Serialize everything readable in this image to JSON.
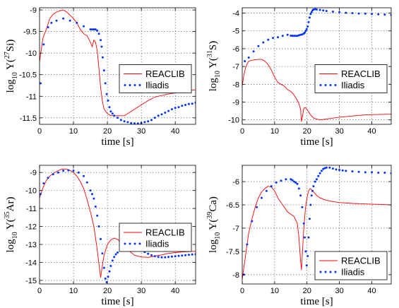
{
  "chart_data": [
    {
      "type": "line",
      "ylabel_base": "log",
      "ylabel_sub": "10",
      "ylabel_mid": " Y(",
      "ylabel_sup": "27",
      "ylabel_iso": "Si)",
      "xlabel": "time [s]",
      "xlim": [
        0,
        46
      ],
      "ylim": [
        -11.65,
        -8.95
      ],
      "xticks": [
        0,
        10,
        20,
        30,
        40
      ],
      "xtick_labels": [
        "0",
        "10",
        "20",
        "30",
        "40"
      ],
      "yticks": [
        -11.5,
        -11,
        -10.5,
        -10,
        -9.5,
        -9
      ],
      "ytick_labels": [
        "-11.5",
        "-11",
        "-10.5",
        "-10",
        "-9.5",
        "-9"
      ],
      "grid": true,
      "legend_position": "center-right",
      "series": [
        {
          "name": "REACLIB",
          "style": "line",
          "color": "#ff0000",
          "x": [
            0,
            1,
            2,
            3,
            4,
            5,
            6,
            7,
            8,
            9,
            10,
            11,
            12,
            13,
            14,
            15,
            15.5,
            16,
            16.5,
            17,
            17.5,
            18,
            18.5,
            19,
            20,
            21,
            22,
            23,
            24,
            25,
            26,
            28,
            30,
            32,
            34,
            36,
            38,
            40,
            42,
            44,
            46
          ],
          "y": [
            -10.2,
            -9.65,
            -9.45,
            -9.2,
            -9.1,
            -9.05,
            -9.02,
            -9.0,
            -9.05,
            -9.12,
            -9.2,
            -9.3,
            -9.45,
            -9.55,
            -9.6,
            -9.75,
            -9.85,
            -9.7,
            -9.75,
            -9.95,
            -10.35,
            -10.8,
            -11.1,
            -11.3,
            -11.4,
            -11.45,
            -11.45,
            -11.45,
            -11.45,
            -11.45,
            -11.4,
            -11.3,
            -11.2,
            -11.1,
            -11.02,
            -10.98,
            -10.95,
            -10.92,
            -10.9,
            -10.87,
            -10.85
          ]
        },
        {
          "name": "Iliadis",
          "style": "dots",
          "color": "#0033ff",
          "x": [
            0.3,
            1.2,
            2.5,
            3.5,
            5,
            7,
            9,
            11,
            13,
            15,
            15.5,
            16,
            16.5,
            17,
            17.5,
            18,
            18.3,
            18.6,
            19,
            19.4,
            19.8,
            20.2,
            20.6,
            21,
            21.5,
            22,
            23,
            24,
            25,
            26,
            27,
            28,
            29,
            30,
            31,
            32,
            33,
            34,
            35,
            36,
            37,
            38,
            39,
            40,
            41,
            42,
            43,
            44,
            45,
            46
          ],
          "y": [
            -10.7,
            -9.8,
            -9.4,
            -9.3,
            -9.25,
            -9.2,
            -9.25,
            -9.3,
            -9.38,
            -9.45,
            -9.45,
            -9.45,
            -9.45,
            -9.48,
            -9.55,
            -9.7,
            -9.85,
            -10.1,
            -10.4,
            -10.7,
            -10.95,
            -11.1,
            -11.25,
            -11.35,
            -11.4,
            -11.45,
            -11.5,
            -11.55,
            -11.58,
            -11.6,
            -11.62,
            -11.63,
            -11.63,
            -11.62,
            -11.6,
            -11.58,
            -11.55,
            -11.5,
            -11.45,
            -11.42,
            -11.38,
            -11.34,
            -11.3,
            -11.27,
            -11.25,
            -11.22,
            -11.2,
            -11.18,
            -11.17,
            -11.15
          ]
        }
      ]
    },
    {
      "type": "line",
      "ylabel_base": "log",
      "ylabel_sub": "10",
      "ylabel_mid": " Y(",
      "ylabel_sup": "31",
      "ylabel_iso": "S)",
      "xlabel": "time [s]",
      "xlim": [
        0,
        46
      ],
      "ylim": [
        -10.25,
        -3.7
      ],
      "xticks": [
        0,
        10,
        20,
        30,
        40
      ],
      "xtick_labels": [
        "0",
        "10",
        "20",
        "30",
        "40"
      ],
      "yticks": [
        -10,
        -9,
        -8,
        -7,
        -6,
        -5,
        -4
      ],
      "ytick_labels": [
        "-10",
        "-9",
        "-8",
        "-7",
        "-6",
        "-5",
        "-4"
      ],
      "grid": true,
      "legend_position": "center-right",
      "series": [
        {
          "name": "REACLIB",
          "style": "line",
          "color": "#ff0000",
          "x": [
            0,
            0.5,
            1,
            1.5,
            2,
            3,
            4,
            5,
            6,
            7,
            8,
            9,
            10,
            11,
            12,
            13,
            14,
            15,
            16,
            17,
            17.5,
            18,
            18.3,
            18.6,
            19,
            19.5,
            20,
            21,
            22,
            24,
            26,
            28,
            30,
            34,
            38,
            42,
            46
          ],
          "y": [
            -8.1,
            -7.5,
            -7.1,
            -6.85,
            -6.7,
            -6.65,
            -6.62,
            -6.6,
            -6.6,
            -6.7,
            -6.9,
            -7.2,
            -7.6,
            -7.9,
            -8.0,
            -8.1,
            -8.3,
            -8.4,
            -8.6,
            -8.9,
            -9.1,
            -9.4,
            -10.1,
            -9.8,
            -9.35,
            -9.3,
            -9.4,
            -9.7,
            -9.9,
            -10.0,
            -9.95,
            -9.9,
            -9.85,
            -9.78,
            -9.72,
            -9.7,
            -9.68
          ]
        },
        {
          "name": "Iliadis",
          "style": "dots",
          "color": "#0033ff",
          "x": [
            0.8,
            2,
            3.5,
            5,
            6.5,
            8,
            9.5,
            11,
            12.5,
            14,
            15,
            15.5,
            16,
            16.5,
            17,
            17.5,
            18,
            18.5,
            19,
            19.3,
            19.6,
            19.9,
            20.2,
            20.5,
            20.8,
            21.1,
            21.4,
            21.7,
            22,
            22.5,
            23,
            24,
            25,
            26,
            28,
            30,
            32,
            34,
            36,
            38,
            40,
            42,
            44,
            46
          ],
          "y": [
            -6.7,
            -6.5,
            -6.15,
            -5.85,
            -5.65,
            -5.5,
            -5.4,
            -5.35,
            -5.28,
            -5.22,
            -5.27,
            -5.28,
            -5.28,
            -5.28,
            -5.28,
            -5.25,
            -5.22,
            -5.2,
            -5.15,
            -5.1,
            -5.0,
            -4.9,
            -4.75,
            -4.5,
            -4.25,
            -4.05,
            -3.95,
            -3.85,
            -3.8,
            -3.78,
            -3.8,
            -3.82,
            -3.85,
            -3.88,
            -3.92,
            -3.95,
            -3.98,
            -4.0,
            -4.02,
            -4.03,
            -4.05,
            -4.07,
            -4.08,
            -4.1
          ]
        }
      ]
    },
    {
      "type": "line",
      "ylabel_base": "log",
      "ylabel_sub": "10",
      "ylabel_mid": " Y(",
      "ylabel_sup": "35",
      "ylabel_iso": "Ar)",
      "xlabel": "time [s]",
      "xlim": [
        0,
        46
      ],
      "ylim": [
        -15.2,
        -8.6
      ],
      "xticks": [
        0,
        10,
        20,
        30,
        40
      ],
      "xtick_labels": [
        "0",
        "10",
        "20",
        "30",
        "40"
      ],
      "yticks": [
        -15,
        -14,
        -13,
        -12,
        -11,
        -10,
        -9
      ],
      "ytick_labels": [
        "-15",
        "-14",
        "-13",
        "-12",
        "-11",
        "-10",
        "-9"
      ],
      "grid": true,
      "legend_position": "center-right",
      "series": [
        {
          "name": "REACLIB",
          "style": "line",
          "color": "#ff0000",
          "x": [
            0,
            1,
            2,
            3,
            4,
            5,
            6,
            7,
            8,
            9,
            10,
            11,
            12,
            13,
            14,
            15,
            16,
            17,
            17.5,
            18,
            18.5,
            19,
            20,
            21,
            22,
            23,
            24,
            25,
            26,
            28,
            30,
            32,
            34,
            36,
            38,
            40,
            42,
            44,
            46
          ],
          "y": [
            -10.4,
            -9.85,
            -9.45,
            -9.2,
            -9.05,
            -8.95,
            -8.85,
            -8.8,
            -8.82,
            -8.88,
            -9.0,
            -9.2,
            -9.5,
            -9.9,
            -10.5,
            -11.2,
            -12.0,
            -13.3,
            -14.1,
            -14.85,
            -14.2,
            -13.6,
            -13.0,
            -12.75,
            -12.65,
            -12.72,
            -12.9,
            -13.1,
            -13.3,
            -13.6,
            -13.7,
            -13.72,
            -13.65,
            -13.58,
            -13.5,
            -13.45,
            -13.42,
            -13.4,
            -13.38
          ]
        },
        {
          "name": "Iliadis",
          "style": "dots",
          "color": "#0033ff",
          "x": [
            0.3,
            1.2,
            2.5,
            4,
            5.5,
            7,
            8.5,
            10,
            11.5,
            13,
            14,
            15,
            15.5,
            16,
            16.5,
            17,
            17.5,
            18,
            18.5,
            19,
            19.4,
            19.8,
            20.2,
            20.6,
            21,
            21.5,
            22,
            22.5,
            23,
            24,
            25,
            26,
            27,
            28,
            29,
            30,
            31,
            32,
            33,
            34,
            35,
            36,
            37,
            38,
            39,
            40,
            41,
            42,
            43,
            44,
            45,
            46
          ],
          "y": [
            -10.2,
            -9.6,
            -9.3,
            -9.1,
            -9.0,
            -8.9,
            -8.88,
            -8.9,
            -9.0,
            -9.2,
            -9.55,
            -10.0,
            -10.2,
            -10.45,
            -10.9,
            -11.4,
            -12.0,
            -12.7,
            -13.5,
            -14.3,
            -14.9,
            -15.1,
            -14.8,
            -14.5,
            -14.2,
            -13.9,
            -13.7,
            -13.55,
            -13.45,
            -13.35,
            -13.3,
            -13.22,
            -13.18,
            -13.18,
            -13.22,
            -13.3,
            -13.42,
            -13.52,
            -13.6,
            -13.66,
            -13.7,
            -13.72,
            -13.72,
            -13.7,
            -13.68,
            -13.66,
            -13.64,
            -13.62,
            -13.6,
            -13.58,
            -13.56,
            -13.55
          ]
        }
      ]
    },
    {
      "type": "line",
      "ylabel_base": "log",
      "ylabel_sub": "10",
      "ylabel_mid": " Y(",
      "ylabel_sup": "39",
      "ylabel_iso": "Ca)",
      "xlabel": "time [s]",
      "xlim": [
        0,
        46
      ],
      "ylim": [
        -8.2,
        -5.65
      ],
      "xticks": [
        0,
        10,
        20,
        30,
        40
      ],
      "xtick_labels": [
        "0",
        "10",
        "20",
        "30",
        "40"
      ],
      "yticks": [
        -8,
        -7.5,
        -7,
        -6.5,
        -6
      ],
      "ytick_labels": [
        "-8",
        "-7.5",
        "-7",
        "-6.5",
        "-6"
      ],
      "grid": true,
      "legend_position": "bottom-right",
      "series": [
        {
          "name": "REACLIB",
          "style": "line",
          "color": "#ff0000",
          "x": [
            0,
            0.5,
            1,
            1.5,
            2,
            3,
            4,
            5,
            6,
            7,
            8,
            9,
            10,
            11,
            12,
            13,
            14,
            15,
            16,
            17,
            17.5,
            18,
            18.3,
            18.6,
            19,
            19.5,
            20,
            20.5,
            21,
            21.5,
            22,
            23,
            24,
            25,
            26,
            28,
            30,
            34,
            38,
            42,
            46
          ],
          "y": [
            -8.1,
            -7.85,
            -7.6,
            -7.35,
            -7.1,
            -6.8,
            -6.55,
            -6.35,
            -6.22,
            -6.15,
            -6.1,
            -6.12,
            -6.2,
            -6.35,
            -6.45,
            -6.55,
            -6.65,
            -6.7,
            -6.75,
            -6.9,
            -7.2,
            -7.7,
            -7.9,
            -7.5,
            -7.0,
            -6.6,
            -6.35,
            -6.2,
            -6.15,
            -6.18,
            -6.22,
            -6.3,
            -6.35,
            -6.38,
            -6.4,
            -6.43,
            -6.45,
            -6.47,
            -6.48,
            -6.49,
            -6.5
          ]
        },
        {
          "name": "Iliadis",
          "style": "dots",
          "color": "#0033ff",
          "x": [
            0.5,
            1.5,
            3,
            4.5,
            6,
            7.5,
            9,
            10.5,
            12,
            13.5,
            15,
            15.5,
            16,
            16.5,
            17,
            17.5,
            18,
            18.5,
            19,
            19.3,
            19.6,
            19.9,
            20.2,
            20.5,
            20.8,
            21.1,
            21.4,
            21.7,
            22,
            22.5,
            23,
            23.5,
            24,
            24.5,
            25,
            25.5,
            26,
            27,
            28,
            29,
            30,
            31,
            32,
            34,
            36,
            38,
            40,
            42,
            44,
            46
          ],
          "y": [
            -8.0,
            -7.35,
            -6.85,
            -6.55,
            -6.35,
            -6.2,
            -6.1,
            -6.02,
            -5.98,
            -5.95,
            -5.95,
            -5.97,
            -6.0,
            -6.02,
            -6.05,
            -6.15,
            -6.3,
            -6.55,
            -6.9,
            -7.2,
            -7.5,
            -7.8,
            -7.6,
            -7.2,
            -6.8,
            -6.5,
            -6.3,
            -6.2,
            -6.1,
            -6.0,
            -5.95,
            -5.88,
            -5.82,
            -5.77,
            -5.73,
            -5.71,
            -5.7,
            -5.7,
            -5.72,
            -5.74,
            -5.75,
            -5.76,
            -5.77,
            -5.78,
            -5.79,
            -5.8,
            -5.8,
            -5.81,
            -5.81,
            -5.82
          ]
        }
      ]
    }
  ]
}
